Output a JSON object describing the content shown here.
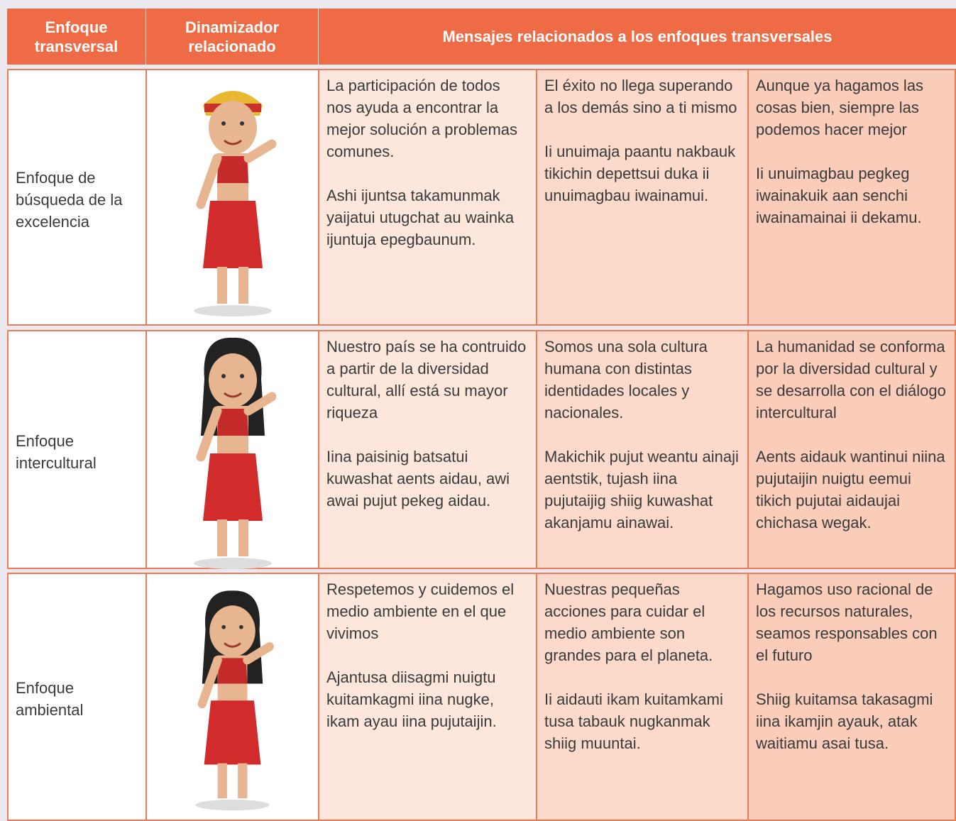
{
  "table": {
    "header": [
      "Enfoque transversal",
      "Dinamizador relacionado",
      "Mensajes relacionados a los enfoques transversales"
    ],
    "rows": [
      {
        "enfoque": "Enfoque de búsqueda de la excelencia",
        "mensajes": [
          [
            "La participación de todos nos ayuda a encontrar la mejor solución a problemas comunes.",
            "Ashi ijuntsa takamunmak yaijatui utugchat au wainka ijuntuja epegbaunum."
          ],
          [
            "El éxito no llega superando a los demás sino a ti mismo",
            "Ii unuimaja paantu nakbauk tikichin depettsui duka  ii unuimagbau iwainamui."
          ],
          [
            "Aunque ya hagamos las cosas bien, siempre las podemos hacer mejor",
            "Ii unuimagbau pegkeg iwainakuik aan senchi iwainamainai ii dekamu."
          ]
        ]
      },
      {
        "enfoque": "Enfoque intercultural",
        "mensajes": [
          [
            "Nuestro país se ha contruido a partir de la diversidad cultural, allí está su mayor riqueza",
            "Iina paisinig batsatui kuwashat aents aidau, awi awai pujut pekeg aidau."
          ],
          [
            "Somos una sola cultura humana con distintas identidades locales y nacionales.",
            "Makichik pujut weantu ainaji aentstik, tujash iina pujutaijig shiig kuwashat akanjamu ainawai."
          ],
          [
            "La humanidad se conforma por la diversidad cultural y se desarrolla con el diálogo intercultural",
            "Aents aidauk wantinui niina pujutaijin  nuigtu eemui tikich pujutai aidaujai chichasa wegak."
          ]
        ]
      },
      {
        "enfoque": "Enfoque ambiental",
        "mensajes": [
          [
            "Respetemos y cuidemos el medio ambiente en el que vivimos",
            "Ajantusa diisagmi nuigtu kuitamkagmi iina nugke, ikam ayau iina pujutaijin."
          ],
          [
            "Nuestras pequeñas acciones para cuidar el medio ambiente son grandes para el planeta.",
            "Ii aidauti ikam kuitamkami tusa tabauk nugkanmak shiig muuntai."
          ],
          [
            "Hagamos uso racional de los recursos naturales, seamos responsables con el futuro",
            "Shiig kuitamsa takasagmi iina ikamjin ayauk, atak waitiamu asai tusa."
          ]
        ]
      }
    ]
  }
}
